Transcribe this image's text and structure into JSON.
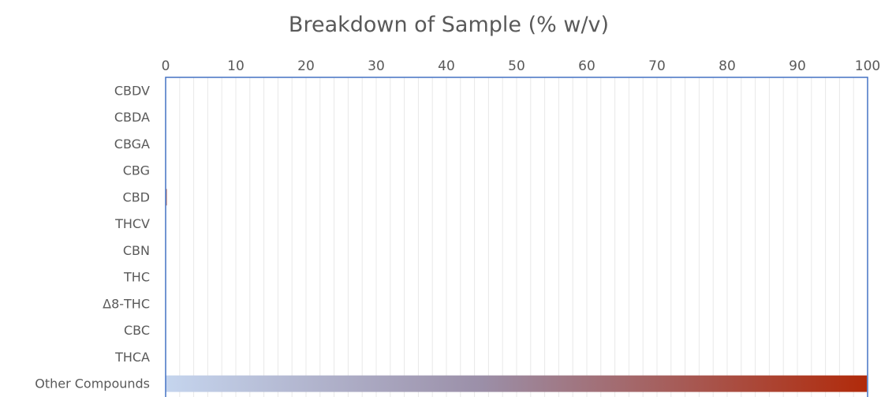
{
  "chart_data": {
    "type": "bar",
    "orientation": "horizontal",
    "title": "Breakdown of Sample (% w/v)",
    "xlabel": "",
    "ylabel": "",
    "xlim": [
      0,
      100
    ],
    "x_ticks": [
      0,
      10,
      20,
      30,
      40,
      50,
      60,
      70,
      80,
      90,
      100
    ],
    "x_axis_position": "top",
    "grid": true,
    "categories": [
      "CBDV",
      "CBDA",
      "CBGA",
      "CBG",
      "CBD",
      "THCV",
      "CBN",
      "THC",
      "Δ8-THC",
      "CBC",
      "THCA",
      "Other Compounds"
    ],
    "values": [
      0,
      0,
      0,
      0,
      0.1,
      0,
      0,
      0,
      0,
      0,
      0,
      99.9
    ],
    "legend": "none",
    "colors": {
      "bar_gradient_start": "#c5d5ee",
      "bar_gradient_mid": "#9b8fa8",
      "bar_gradient_end": "#b12a0a",
      "plot_border": "#4472c4",
      "gridline": "#e8e8e8",
      "text": "#595959"
    }
  }
}
